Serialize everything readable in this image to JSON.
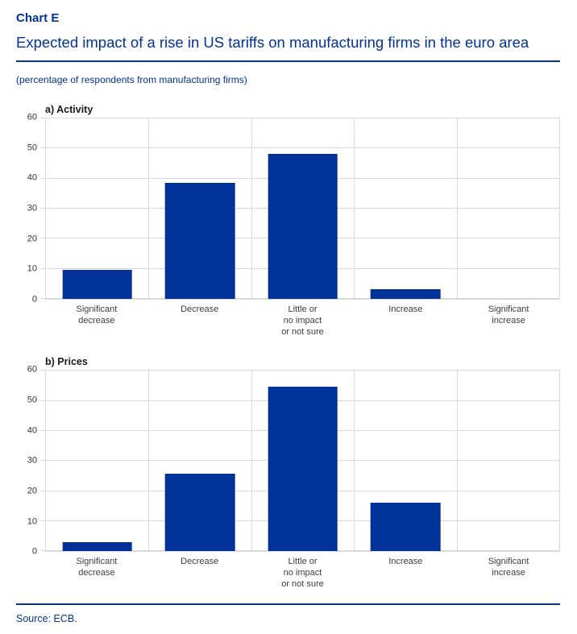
{
  "header": {
    "chart_label": "Chart E",
    "title": "Expected impact of a rise in US tariffs on manufacturing firms in the euro area",
    "note": "(percentage of respondents from manufacturing firms)"
  },
  "footer": {
    "source": "Source: ECB."
  },
  "colors": {
    "accent_blue": "#003299",
    "bar_blue": "#003299",
    "gridline_gray": "#d9d9d9"
  },
  "chart_data": [
    {
      "type": "bar",
      "title": "a) Activity",
      "categories": [
        [
          "Significant",
          "decrease"
        ],
        [
          "Decrease"
        ],
        [
          "Little or",
          "no impact",
          "or not sure"
        ],
        [
          "Increase"
        ],
        [
          "Significant",
          "increase"
        ]
      ],
      "values": [
        9.8,
        38.6,
        48.3,
        3.2,
        0
      ],
      "xlabel": "",
      "ylabel": "",
      "ylim": [
        0,
        60
      ],
      "ytick_step": 10,
      "grid": true,
      "legend": "none"
    },
    {
      "type": "bar",
      "title": "b) Prices",
      "categories": [
        [
          "Significant",
          "decrease"
        ],
        [
          "Decrease"
        ],
        [
          "Little or",
          "no impact",
          "or not sure"
        ],
        [
          "Increase"
        ],
        [
          "Significant",
          "increase"
        ]
      ],
      "values": [
        3.1,
        25.8,
        54.8,
        16.1,
        0
      ],
      "xlabel": "",
      "ylabel": "",
      "ylim": [
        0,
        60
      ],
      "ytick_step": 10,
      "grid": true,
      "legend": "none"
    }
  ]
}
